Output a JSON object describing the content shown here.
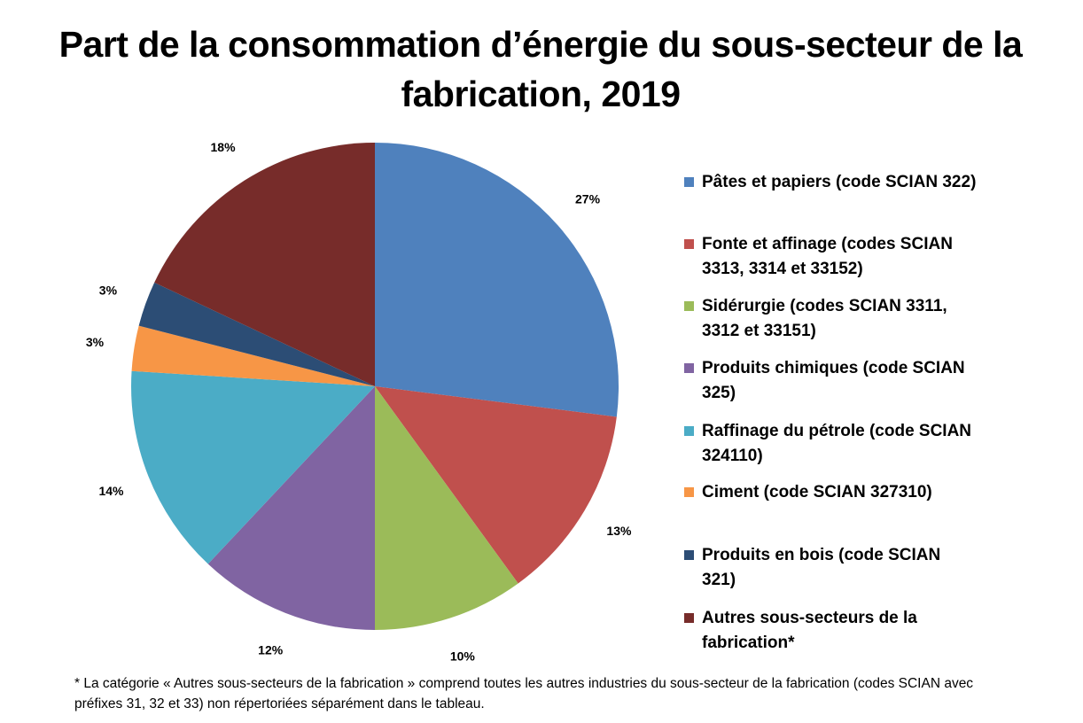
{
  "chart_data": {
    "type": "pie",
    "title": "Part de la consommation d’énergie du sous-secteur de la fabrication, 2019",
    "categories": [
      "Pâtes et papiers (code SCIAN 322)",
      "Fonte et affinage (codes SCIAN 3313, 3314 et 33152)",
      "Sidérurgie (codes SCIAN 3311, 3312 et 33151)",
      "Produits chimiques (code SCIAN 325)",
      "Raffinage du pétrole (code SCIAN 324110)",
      "Ciment (code SCIAN 327310)",
      "Produits en bois (code SCIAN 321)",
      "Autres sous-secteurs de la fabrication*"
    ],
    "values": [
      27,
      13,
      10,
      12,
      14,
      3,
      3,
      18
    ],
    "data_labels": [
      "27%",
      "13%",
      "10%",
      "12%",
      "14%",
      "3%",
      "3%",
      "18%"
    ],
    "colors": [
      "#4F81BD",
      "#C0504D",
      "#9BBB59",
      "#8064A2",
      "#4BACC6",
      "#F79646",
      "#2C4D75",
      "#772C2A"
    ],
    "legend_position": "right",
    "footnote": "* La catégorie « Autres sous-secteurs de la fabrication » comprend toutes les autres industries du sous-secteur de la fabrication (codes SCIAN avec préfixes 31, 32 et 33) non répertoriées séparément dans le tableau."
  }
}
